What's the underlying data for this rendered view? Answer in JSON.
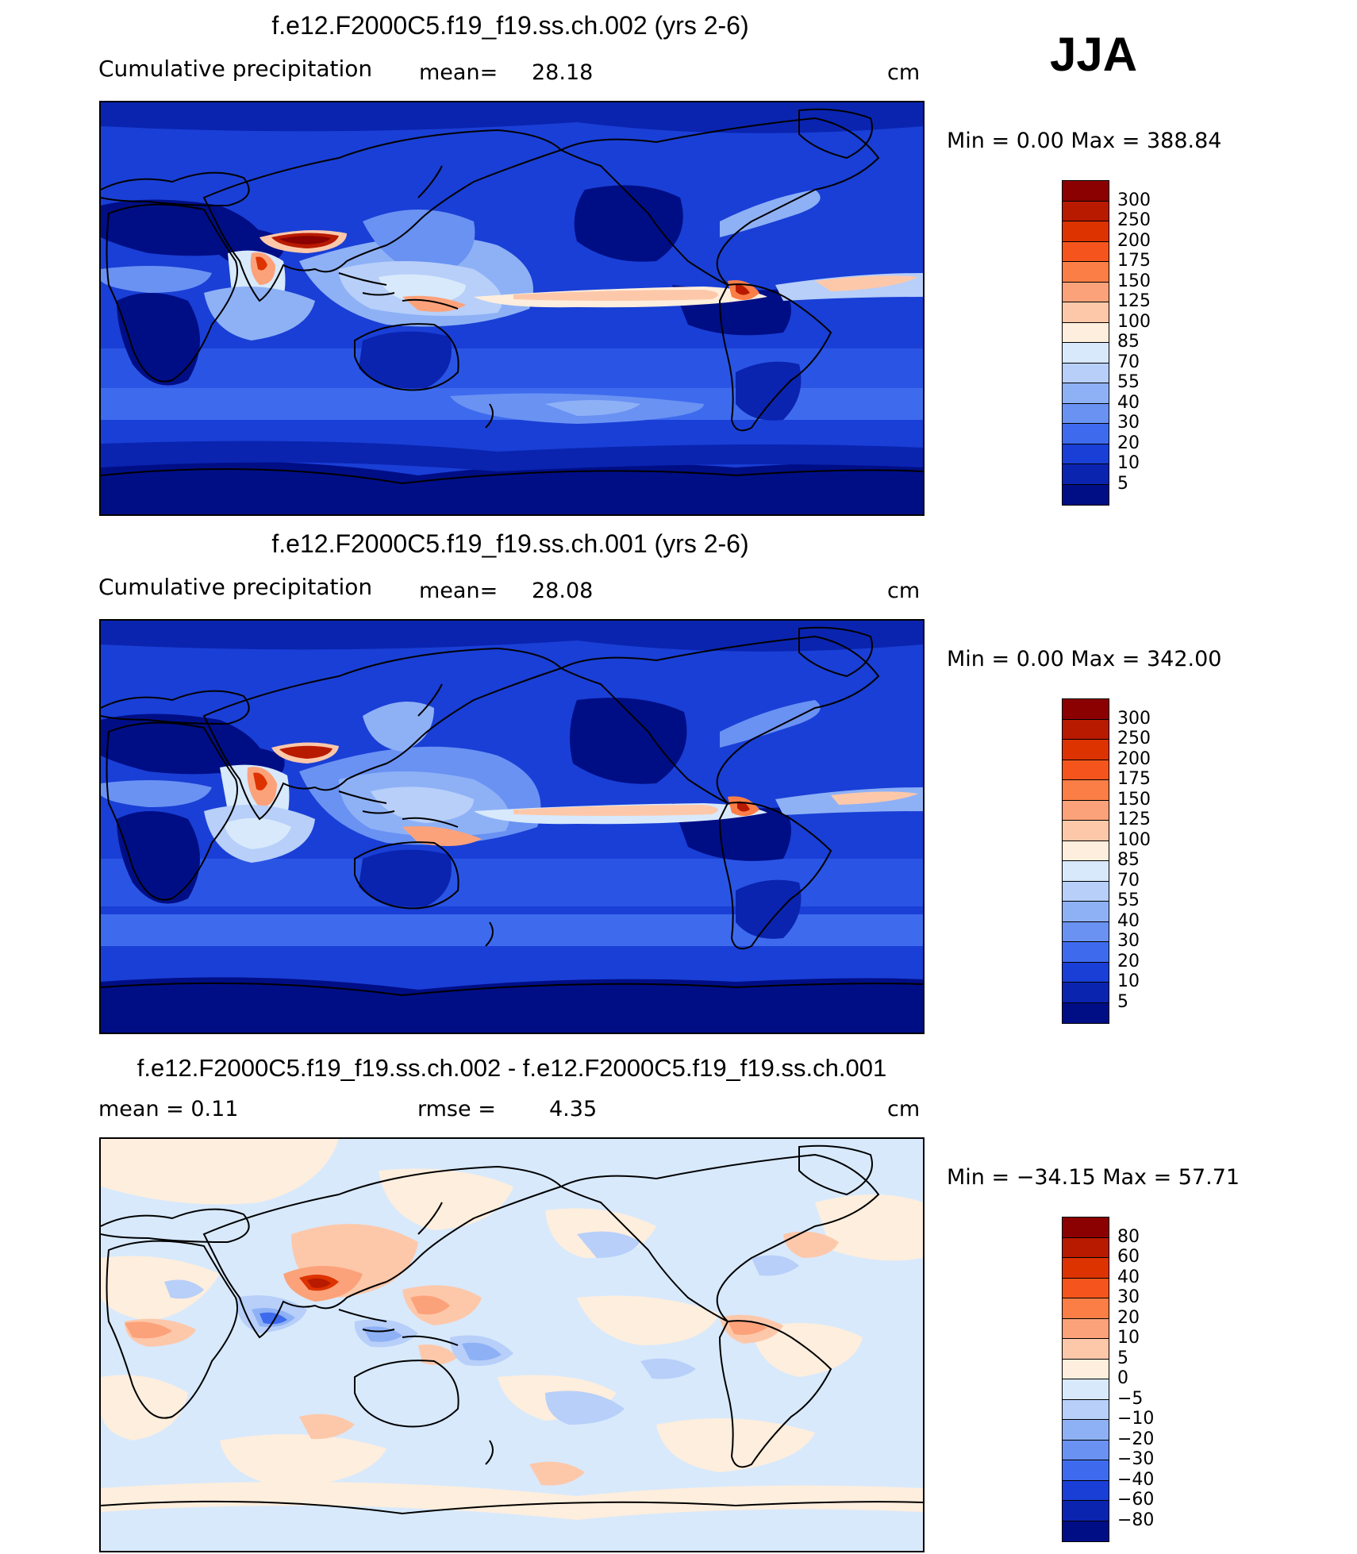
{
  "season": "JJA",
  "panels": [
    {
      "title": "f.e12.F2000C5.f19_f19.ss.ch.002 (yrs 2-6)",
      "left_label": "Cumulative  precipitation",
      "stat_label": "mean=",
      "stat_value": "28.18",
      "units": "cm",
      "minmax": "Min  =       0.00  Max  =  388.84",
      "type": "abs"
    },
    {
      "title": "f.e12.F2000C5.f19_f19.ss.ch.001 (yrs 2-6)",
      "left_label": "Cumulative  precipitation",
      "stat_label": "mean=",
      "stat_value": "28.08",
      "units": "cm",
      "minmax": "Min  =       0.00  Max  =  342.00",
      "type": "abs"
    },
    {
      "title": "f.e12.F2000C5.f19_f19.ss.ch.002 - f.e12.F2000C5.f19_f19.ss.ch.001",
      "left_label": "mean  =     0.11",
      "stat_label": "rmse  =",
      "stat_value": "4.35",
      "units": "cm",
      "minmax": "Min  =  −34.15  Max  =    57.71",
      "type": "diff"
    }
  ],
  "colorbars": {
    "abs": {
      "labels": [
        "300",
        "250",
        "200",
        "175",
        "150",
        "125",
        "100",
        "85",
        "70",
        "55",
        "40",
        "30",
        "20",
        "10",
        "5"
      ],
      "colors": [
        "#8b0000",
        "#b81a00",
        "#dd3300",
        "#f5551c",
        "#fb7e46",
        "#fca27a",
        "#fdc8aa",
        "#feeedd",
        "#d8e9fc",
        "#b7cff9",
        "#8eb1f6",
        "#6a92f3",
        "#3e6bee",
        "#1a3fd6",
        "#0a24b0",
        "#000e86"
      ]
    },
    "diff": {
      "labels": [
        "80",
        "60",
        "40",
        "30",
        "20",
        "10",
        "5",
        "0",
        "−5",
        "−10",
        "−20",
        "−30",
        "−40",
        "−60",
        "−80"
      ],
      "colors": [
        "#8b0000",
        "#b81a00",
        "#dd3300",
        "#f5551c",
        "#fb7e46",
        "#fca27a",
        "#fdc8aa",
        "#feeedd",
        "#d8e9fc",
        "#b7cff9",
        "#8eb1f6",
        "#6a92f3",
        "#3e6bee",
        "#1a3fd6",
        "#0a24b0",
        "#000e86"
      ]
    }
  }
}
